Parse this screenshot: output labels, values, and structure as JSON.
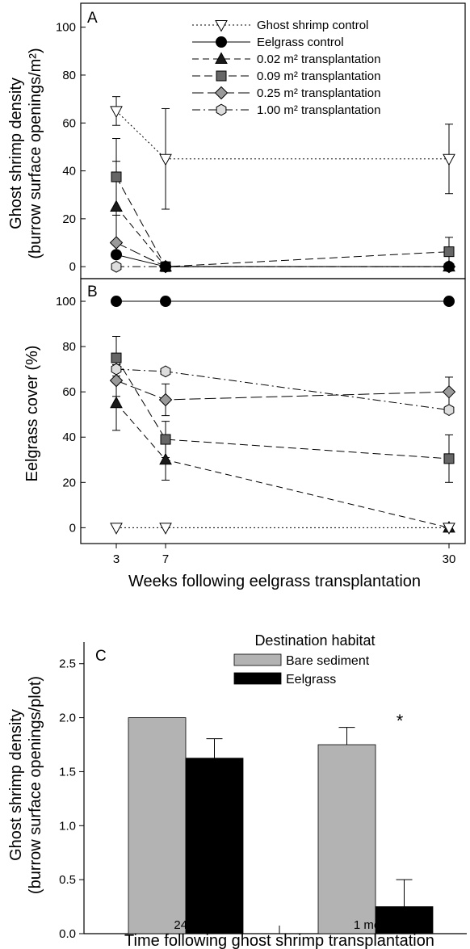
{
  "chart_data": [
    {
      "panel": "A",
      "type": "line",
      "ylabel_line1": "Ghost shrimp density",
      "ylabel_line2": "(burrow surface openings/m²)",
      "xlabel": "",
      "x": [
        3,
        7,
        30
      ],
      "x_ticks": [
        "3",
        "7",
        "30"
      ],
      "ylim": [
        -5,
        110
      ],
      "y_ticks": [
        0,
        20,
        40,
        60,
        80,
        100
      ],
      "grid": false,
      "legend": "top-right",
      "series": [
        {
          "name": "Ghost shrimp control",
          "values": [
            65,
            45,
            45
          ],
          "errors": [
            6,
            21,
            14.5
          ],
          "marker": "triangle-down",
          "fill": "#ffffff",
          "dash": "2,3"
        },
        {
          "name": "Eelgrass control",
          "values": [
            5,
            0,
            0
          ],
          "errors": [
            0,
            0,
            0
          ],
          "marker": "circle",
          "fill": "#000000",
          "dash": ""
        },
        {
          "name": "0.02 m² transplantation",
          "values": [
            25,
            0,
            0
          ],
          "errors": [
            19,
            0,
            0
          ],
          "marker": "triangle-up",
          "fill": "#1a1a1a",
          "dash": "8,5"
        },
        {
          "name": "0.09 m² transplantation",
          "values": [
            37.5,
            0,
            6.25
          ],
          "errors": [
            16,
            0,
            6
          ],
          "marker": "square",
          "fill": "#666666",
          "dash": "10,5"
        },
        {
          "name": "0.25 m² transplantation",
          "values": [
            10,
            0,
            0
          ],
          "errors": [
            0,
            0,
            0
          ],
          "marker": "diamond",
          "fill": "#9a9a9a",
          "dash": "14,5"
        },
        {
          "name": "1.00 m² transplantation",
          "values": [
            0,
            0,
            0
          ],
          "errors": [
            0,
            0,
            0
          ],
          "marker": "hexagon",
          "fill": "#dddddd",
          "dash": "10,4,2,4"
        }
      ]
    },
    {
      "panel": "B",
      "type": "line",
      "ylabel_line1": "Eelgrass cover (%)",
      "xlabel": "Weeks following eelgrass transplantation",
      "x": [
        3,
        7,
        30
      ],
      "x_ticks": [
        "3",
        "7",
        "30"
      ],
      "ylim": [
        -7,
        110
      ],
      "y_ticks": [
        0,
        20,
        40,
        60,
        80,
        100
      ],
      "grid": false,
      "series": [
        {
          "name": "Ghost shrimp control",
          "values": [
            0,
            0,
            0
          ],
          "errors": [
            0,
            0,
            0
          ],
          "marker": "triangle-down",
          "fill": "#ffffff",
          "dash": "2,3"
        },
        {
          "name": "Eelgrass control",
          "values": [
            100,
            100,
            100
          ],
          "errors": [
            0,
            0,
            0
          ],
          "marker": "circle",
          "fill": "#000000",
          "dash": ""
        },
        {
          "name": "0.02 m² transplantation",
          "values": [
            55,
            30,
            0
          ],
          "errors": [
            12,
            9,
            0
          ],
          "marker": "triangle-up",
          "fill": "#1a1a1a",
          "dash": "8,5"
        },
        {
          "name": "0.09 m² transplantation",
          "values": [
            75,
            39,
            30.5
          ],
          "errors": [
            9.5,
            8,
            10.5
          ],
          "marker": "square",
          "fill": "#666666",
          "dash": "10,5"
        },
        {
          "name": "0.25 m² transplantation",
          "values": [
            65,
            56.5,
            60
          ],
          "errors": [
            7,
            7,
            6.5
          ],
          "marker": "diamond",
          "fill": "#9a9a9a",
          "dash": "14,5"
        },
        {
          "name": "1.00 m² transplantation",
          "values": [
            70,
            69,
            52
          ],
          "errors": [
            0,
            0,
            0
          ],
          "marker": "hexagon",
          "fill": "#dddddd",
          "dash": "10,4,2,4"
        }
      ]
    },
    {
      "panel": "C",
      "type": "bar",
      "ylabel_line1": "Ghost shrimp density",
      "ylabel_line2": "(burrow surface openings/plot)",
      "xlabel": "Time following ghost shrimp transplantation",
      "categories": [
        "24 h",
        "1 month"
      ],
      "ylim": [
        0,
        2.7
      ],
      "y_ticks": [
        "0.0",
        "0.5",
        "1.0",
        "1.5",
        "2.0",
        "2.5"
      ],
      "legend_title": "Destination habitat",
      "legend": "top-center",
      "grid": false,
      "annotation": "*",
      "series": [
        {
          "name": "Bare sediment",
          "values": [
            2.0,
            1.75
          ],
          "errors": [
            0,
            0.16
          ],
          "color": "#b3b3b3"
        },
        {
          "name": "Eelgrass",
          "values": [
            1.625,
            0.25
          ],
          "errors": [
            0.18,
            0.25
          ],
          "color": "#000000"
        }
      ]
    }
  ]
}
